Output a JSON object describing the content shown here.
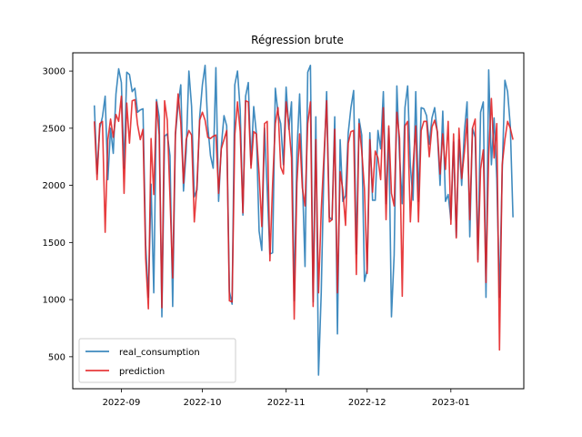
{
  "chart_data": {
    "type": "line",
    "title": "Régression brute",
    "xlabel": "",
    "ylabel": "",
    "x_start": "2022-08-22",
    "x_end": "2023-01-19",
    "xlim": [
      "2022-08-14",
      "2023-01-28"
    ],
    "ylim": [
      220,
      3160
    ],
    "x_ticks": [
      "2022-09-01",
      "2022-10-01",
      "2022-11-01",
      "2022-12-01",
      "2023-01-01"
    ],
    "x_tick_labels": [
      "2022-09",
      "2022-10",
      "2022-11",
      "2022-12",
      "2023-01"
    ],
    "y_ticks": [
      500,
      1000,
      1500,
      2000,
      2500,
      3000
    ],
    "y_tick_labels": [
      "500",
      "1000",
      "1500",
      "2000",
      "2500",
      "3000"
    ],
    "grid": false,
    "legend": "lower-left",
    "series": [
      {
        "name": "real_consumption",
        "color": "#1f77b4",
        "values": [
          2700,
          2100,
          2500,
          2600,
          2780,
          2050,
          2500,
          2280,
          2800,
          3020,
          2900,
          2150,
          2990,
          2970,
          2820,
          2850,
          2640,
          2660,
          2670,
          1480,
          1020,
          2010,
          1060,
          2750,
          2600,
          850,
          2430,
          2450,
          2260,
          940,
          2440,
          2700,
          2880,
          1950,
          2300,
          3000,
          2690,
          1900,
          1960,
          2600,
          2880,
          3050,
          2520,
          2260,
          2150,
          3030,
          1860,
          2340,
          2610,
          2520,
          1070,
          960,
          2880,
          3000,
          2660,
          1740,
          2780,
          2900,
          2180,
          2690,
          2450,
          1600,
          1430,
          2500,
          1960,
          1400,
          1410,
          2850,
          2630,
          2540,
          2180,
          2860,
          2490,
          2730,
          990,
          2290,
          2800,
          2080,
          1290,
          2990,
          3050,
          980,
          2600,
          340,
          1060,
          2160,
          2820,
          1720,
          1700,
          2600,
          700,
          2400,
          1860,
          1910,
          2460,
          2680,
          2830,
          1400,
          2580,
          2440,
          1160,
          1260,
          2460,
          1870,
          1870,
          2480,
          2320,
          2820,
          1840,
          2500,
          850,
          1390,
          2870,
          2250,
          1840,
          2680,
          2870,
          2170,
          1870,
          2820,
          1860,
          2680,
          2670,
          2610,
          2360,
          2590,
          2680,
          2460,
          2000,
          2650,
          1860,
          1920,
          1700,
          2380,
          1550,
          2400,
          2000,
          2470,
          2730,
          1550,
          2500,
          2420,
          1350,
          2640,
          2730,
          1020,
          3010,
          2180,
          2590,
          2060,
          1020,
          2110,
          2920,
          2820,
          2520,
          1720
        ]
      },
      {
        "name": "prediction",
        "color": "#e31a1c",
        "values": [
          2560,
          2050,
          2540,
          2560,
          1590,
          2400,
          2580,
          2420,
          2620,
          2560,
          2780,
          1930,
          2720,
          2370,
          2740,
          2750,
          2530,
          2400,
          2490,
          1360,
          920,
          2410,
          1920,
          2730,
          2440,
          930,
          2740,
          2570,
          1900,
          1190,
          2450,
          2800,
          2550,
          2020,
          2400,
          2480,
          2440,
          1680,
          2000,
          2570,
          2640,
          2570,
          2420,
          2410,
          2430,
          2440,
          1930,
          2320,
          2400,
          2480,
          990,
          980,
          2440,
          2730,
          2470,
          1760,
          2740,
          2730,
          2150,
          2470,
          2450,
          2100,
          1640,
          2540,
          2560,
          1340,
          2010,
          2540,
          2680,
          2160,
          2100,
          2730,
          2530,
          2240,
          830,
          2020,
          2450,
          1980,
          1820,
          2540,
          2730,
          940,
          2400,
          1060,
          1780,
          2250,
          2740,
          1680,
          1700,
          2490,
          1060,
          2120,
          1960,
          1650,
          2370,
          2470,
          2480,
          1220,
          2540,
          2300,
          1970,
          1230,
          2400,
          1940,
          2300,
          2240,
          2050,
          2680,
          1700,
          2520,
          1930,
          1820,
          2640,
          2410,
          1030,
          2520,
          2560,
          1680,
          2170,
          2520,
          1680,
          2480,
          2560,
          2560,
          2250,
          2510,
          2570,
          2470,
          2100,
          2450,
          2140,
          2560,
          1660,
          2450,
          1540,
          2500,
          2060,
          2290,
          2580,
          1700,
          2500,
          2580,
          1330,
          2140,
          2310,
          1150,
          2260,
          2760,
          2240,
          2540,
          560,
          2180,
          2400,
          2560,
          2500,
          2400
        ]
      }
    ]
  }
}
